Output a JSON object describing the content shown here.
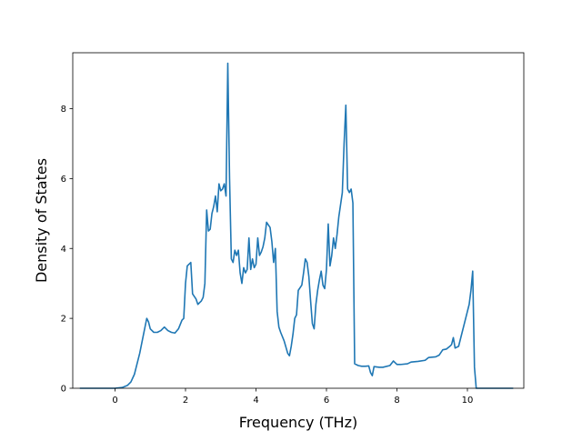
{
  "chart_data": {
    "type": "line",
    "title": "",
    "xlabel": "Frequency (THz)",
    "ylabel": "Density of States",
    "xlim": [
      -1.2,
      11.6
    ],
    "ylim": [
      0,
      9.6
    ],
    "xticks": [
      0,
      2,
      4,
      6,
      8,
      10
    ],
    "yticks": [
      0,
      2,
      4,
      6,
      8
    ],
    "grid": false,
    "legend": "none",
    "series": [
      {
        "color": "#1f77b4",
        "points": [
          [
            -1.0,
            0.0
          ],
          [
            0.0,
            0.0
          ],
          [
            0.2,
            0.02
          ],
          [
            0.35,
            0.08
          ],
          [
            0.45,
            0.18
          ],
          [
            0.55,
            0.4
          ],
          [
            0.6,
            0.6
          ],
          [
            0.7,
            1.0
          ],
          [
            0.8,
            1.5
          ],
          [
            0.9,
            2.0
          ],
          [
            0.95,
            1.9
          ],
          [
            1.0,
            1.7
          ],
          [
            1.1,
            1.6
          ],
          [
            1.2,
            1.6
          ],
          [
            1.3,
            1.65
          ],
          [
            1.4,
            1.75
          ],
          [
            1.5,
            1.65
          ],
          [
            1.6,
            1.6
          ],
          [
            1.7,
            1.58
          ],
          [
            1.8,
            1.7
          ],
          [
            1.9,
            1.95
          ],
          [
            1.95,
            2.0
          ],
          [
            2.0,
            3.0
          ],
          [
            2.05,
            3.5
          ],
          [
            2.1,
            3.55
          ],
          [
            2.15,
            3.6
          ],
          [
            2.2,
            2.7
          ],
          [
            2.3,
            2.55
          ],
          [
            2.35,
            2.4
          ],
          [
            2.45,
            2.5
          ],
          [
            2.5,
            2.6
          ],
          [
            2.55,
            3.0
          ],
          [
            2.6,
            5.1
          ],
          [
            2.65,
            4.5
          ],
          [
            2.7,
            4.55
          ],
          [
            2.75,
            5.0
          ],
          [
            2.8,
            5.2
          ],
          [
            2.85,
            5.5
          ],
          [
            2.9,
            5.05
          ],
          [
            2.95,
            5.85
          ],
          [
            3.0,
            5.65
          ],
          [
            3.05,
            5.7
          ],
          [
            3.1,
            5.85
          ],
          [
            3.15,
            5.5
          ],
          [
            3.2,
            9.3
          ],
          [
            3.25,
            6.0
          ],
          [
            3.3,
            3.7
          ],
          [
            3.35,
            3.6
          ],
          [
            3.4,
            3.95
          ],
          [
            3.45,
            3.8
          ],
          [
            3.5,
            3.95
          ],
          [
            3.55,
            3.3
          ],
          [
            3.6,
            3.0
          ],
          [
            3.65,
            3.45
          ],
          [
            3.7,
            3.3
          ],
          [
            3.75,
            3.4
          ],
          [
            3.8,
            4.3
          ],
          [
            3.85,
            3.4
          ],
          [
            3.9,
            3.7
          ],
          [
            3.95,
            3.45
          ],
          [
            4.0,
            3.55
          ],
          [
            4.05,
            4.3
          ],
          [
            4.1,
            3.8
          ],
          [
            4.15,
            3.9
          ],
          [
            4.2,
            4.05
          ],
          [
            4.25,
            4.3
          ],
          [
            4.3,
            4.75
          ],
          [
            4.4,
            4.6
          ],
          [
            4.45,
            4.2
          ],
          [
            4.5,
            3.6
          ],
          [
            4.55,
            4.0
          ],
          [
            4.6,
            2.2
          ],
          [
            4.65,
            1.75
          ],
          [
            4.7,
            1.6
          ],
          [
            4.8,
            1.35
          ],
          [
            4.9,
            1.0
          ],
          [
            4.95,
            0.93
          ],
          [
            5.0,
            1.2
          ],
          [
            5.05,
            1.55
          ],
          [
            5.1,
            2.0
          ],
          [
            5.15,
            2.1
          ],
          [
            5.2,
            2.8
          ],
          [
            5.3,
            2.95
          ],
          [
            5.35,
            3.3
          ],
          [
            5.4,
            3.7
          ],
          [
            5.45,
            3.6
          ],
          [
            5.5,
            3.2
          ],
          [
            5.55,
            2.5
          ],
          [
            5.6,
            1.85
          ],
          [
            5.65,
            1.7
          ],
          [
            5.7,
            2.4
          ],
          [
            5.75,
            2.8
          ],
          [
            5.8,
            3.1
          ],
          [
            5.85,
            3.35
          ],
          [
            5.9,
            2.95
          ],
          [
            5.95,
            2.85
          ],
          [
            6.0,
            3.4
          ],
          [
            6.05,
            4.7
          ],
          [
            6.1,
            3.5
          ],
          [
            6.15,
            3.8
          ],
          [
            6.2,
            4.3
          ],
          [
            6.25,
            4.0
          ],
          [
            6.3,
            4.4
          ],
          [
            6.35,
            4.9
          ],
          [
            6.45,
            5.6
          ],
          [
            6.5,
            7.0
          ],
          [
            6.55,
            8.1
          ],
          [
            6.6,
            5.7
          ],
          [
            6.65,
            5.6
          ],
          [
            6.7,
            5.7
          ],
          [
            6.75,
            5.3
          ],
          [
            6.8,
            0.7
          ],
          [
            6.9,
            0.65
          ],
          [
            7.0,
            0.63
          ],
          [
            7.1,
            0.63
          ],
          [
            7.2,
            0.64
          ],
          [
            7.25,
            0.45
          ],
          [
            7.3,
            0.36
          ],
          [
            7.35,
            0.62
          ],
          [
            7.5,
            0.6
          ],
          [
            7.6,
            0.6
          ],
          [
            7.8,
            0.65
          ],
          [
            7.9,
            0.78
          ],
          [
            8.0,
            0.68
          ],
          [
            8.1,
            0.68
          ],
          [
            8.3,
            0.7
          ],
          [
            8.4,
            0.75
          ],
          [
            8.6,
            0.77
          ],
          [
            8.8,
            0.8
          ],
          [
            8.9,
            0.88
          ],
          [
            9.1,
            0.9
          ],
          [
            9.2,
            0.95
          ],
          [
            9.3,
            1.1
          ],
          [
            9.4,
            1.12
          ],
          [
            9.5,
            1.2
          ],
          [
            9.55,
            1.25
          ],
          [
            9.6,
            1.45
          ],
          [
            9.65,
            1.15
          ],
          [
            9.75,
            1.2
          ],
          [
            9.85,
            1.6
          ],
          [
            10.0,
            2.2
          ],
          [
            10.05,
            2.4
          ],
          [
            10.1,
            2.8
          ],
          [
            10.15,
            3.35
          ],
          [
            10.2,
            0.6
          ],
          [
            10.25,
            0.0
          ],
          [
            11.3,
            0.0
          ]
        ]
      }
    ]
  }
}
